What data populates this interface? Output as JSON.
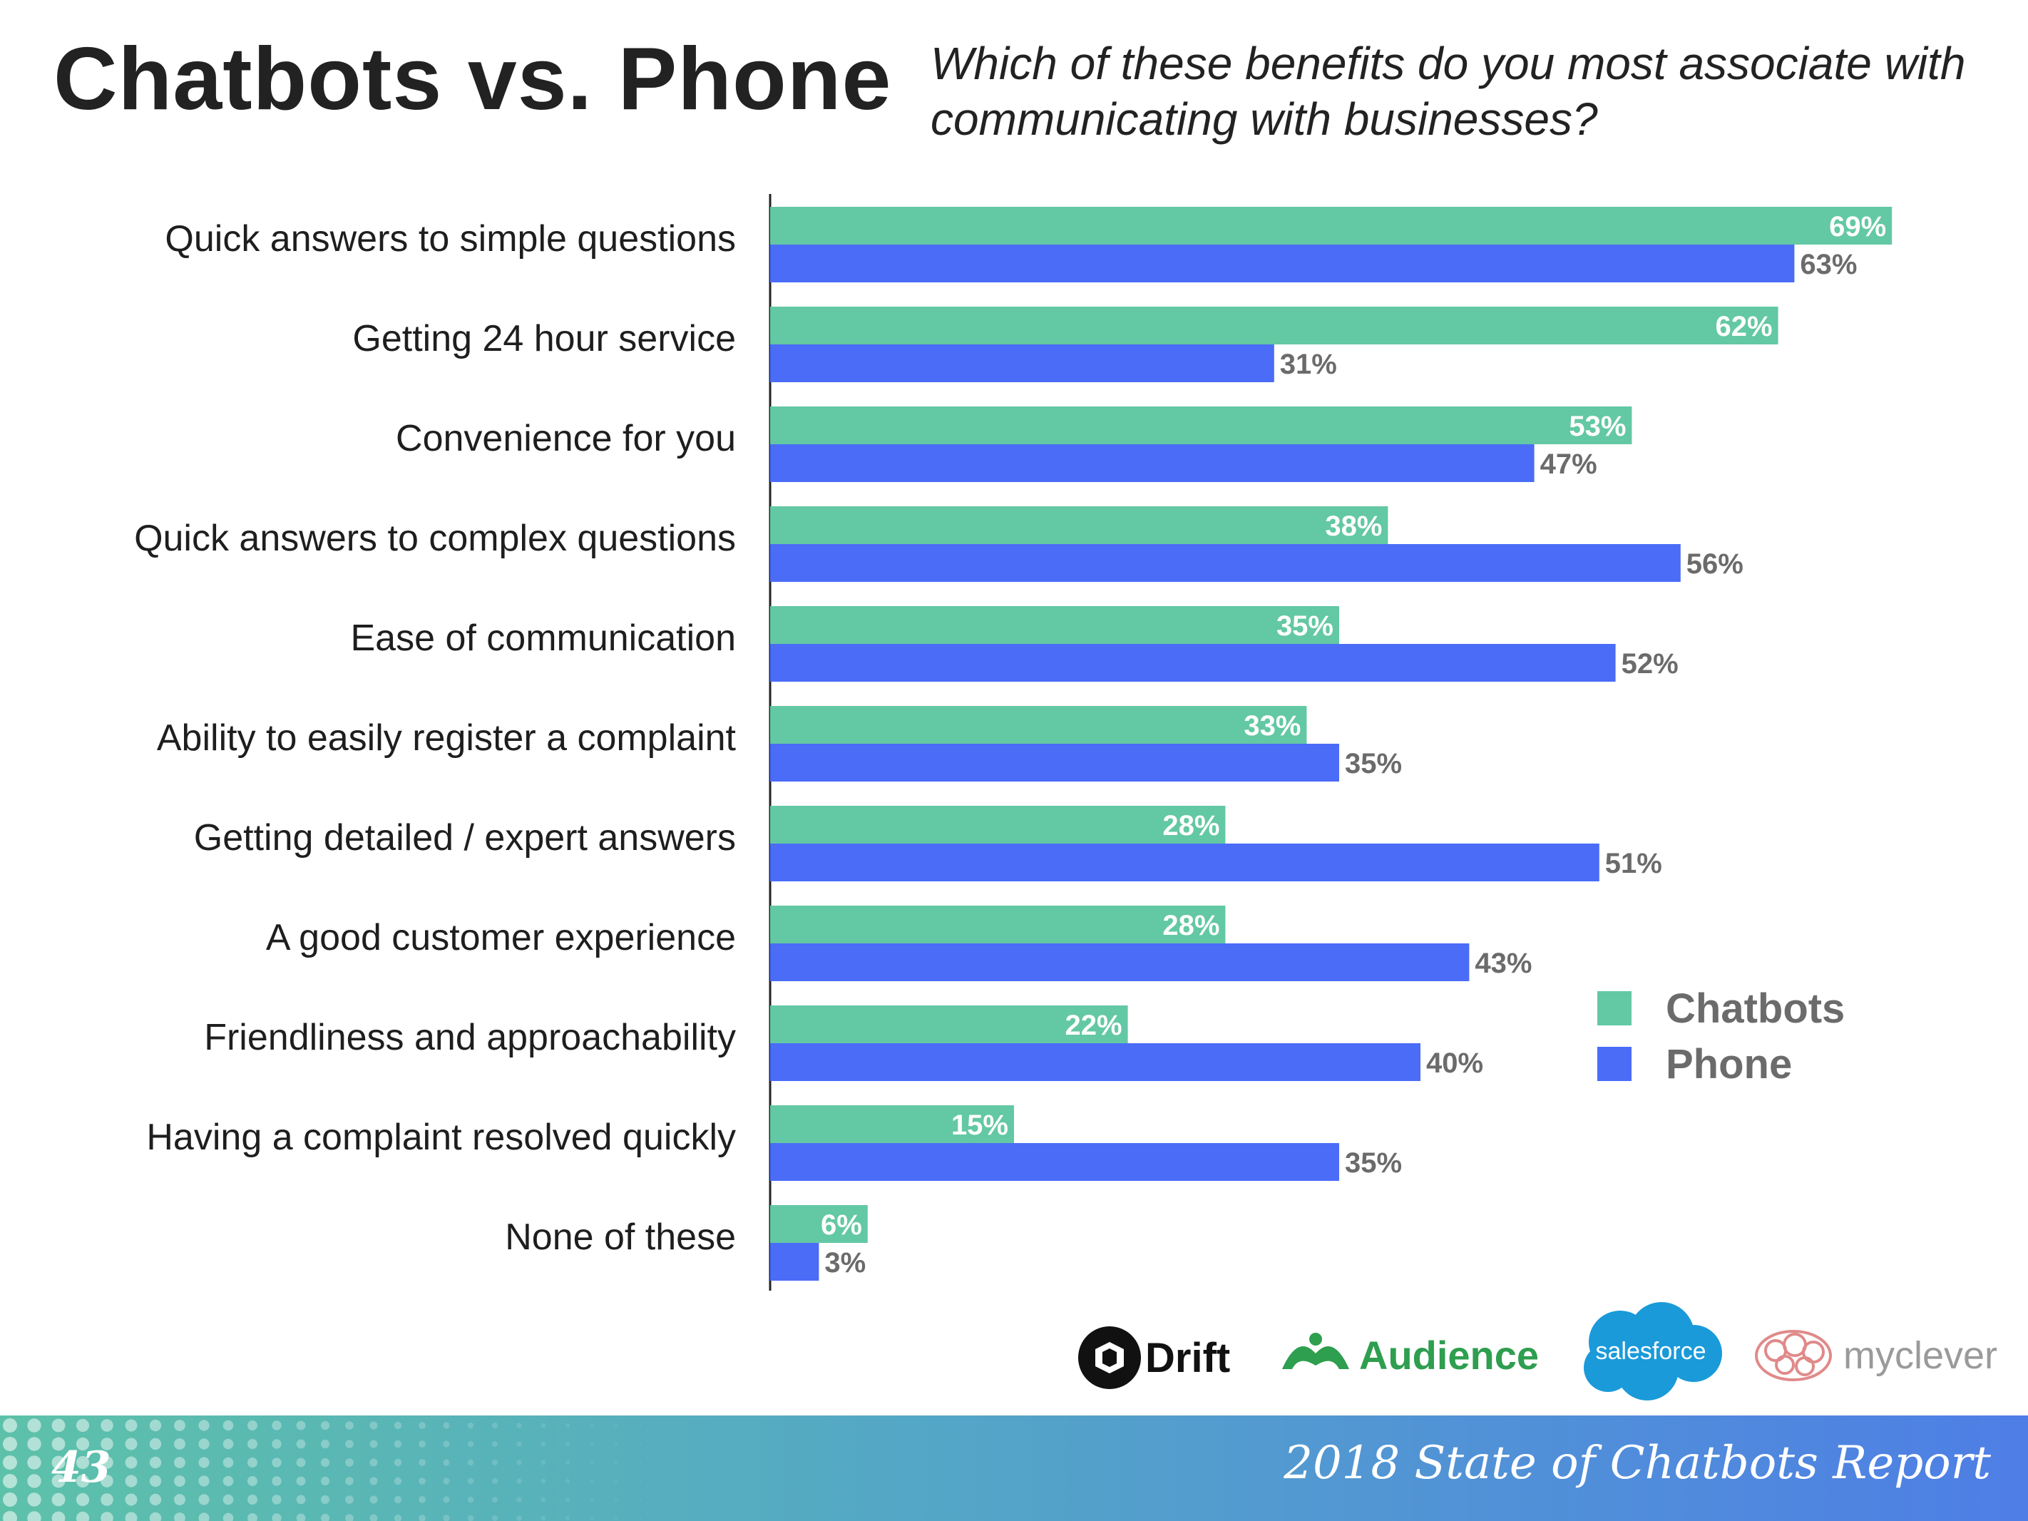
{
  "header": {
    "title": "Chatbots vs. Phone",
    "question": "Which of these benefits do you most associate with communicating with businesses?"
  },
  "colors": {
    "chatbots": "#63c8a4",
    "phone": "#4a6cf7",
    "footer_start": "#5dc1a9",
    "footer_end": "#4e7ee6"
  },
  "chart_data": {
    "type": "bar",
    "orientation": "horizontal",
    "title": "Chatbots vs. Phone",
    "subtitle": "Which of these benefits do you most associate with communicating with businesses?",
    "xlabel": "",
    "ylabel": "",
    "xlim": [
      0,
      100
    ],
    "unit": "%",
    "grid": false,
    "legend_position": "bottom-right",
    "categories": [
      "Quick answers to simple questions",
      "Getting 24 hour service",
      "Convenience for you",
      "Quick answers to complex questions",
      "Ease of communication",
      "Ability to easily register a complaint",
      "Getting detailed / expert answers",
      "A good customer experience",
      "Friendliness and approachability",
      "Having a complaint resolved quickly",
      "None of these"
    ],
    "series": [
      {
        "name": "Chatbots",
        "values": [
          69,
          62,
          53,
          38,
          35,
          33,
          28,
          28,
          22,
          15,
          6
        ]
      },
      {
        "name": "Phone",
        "values": [
          63,
          31,
          47,
          56,
          52,
          35,
          51,
          43,
          40,
          35,
          3
        ]
      }
    ]
  },
  "legend": {
    "chatbots": "Chatbots",
    "phone": "Phone"
  },
  "logos": {
    "drift": "Drift",
    "audience": "Audience",
    "salesforce": "salesforce",
    "myclever": "myclever"
  },
  "footer": {
    "page_number": "43",
    "report_title": "2018 State of Chatbots Report"
  }
}
